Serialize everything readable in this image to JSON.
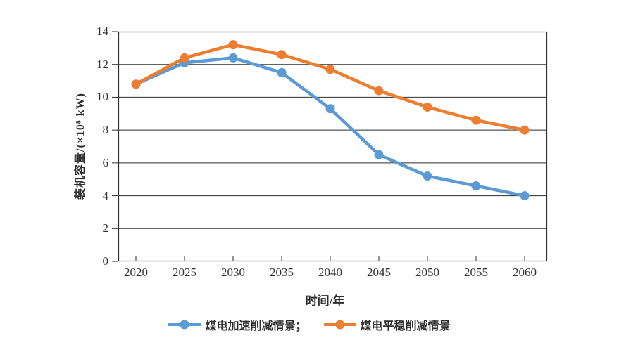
{
  "chart_data": {
    "type": "line",
    "categories": [
      "2020",
      "2025",
      "2030",
      "2035",
      "2040",
      "2045",
      "2050",
      "2055",
      "2060"
    ],
    "series": [
      {
        "name": "煤电加速削减情景；",
        "color": "#5B9BD5",
        "marker": "circle",
        "values": [
          10.8,
          12.1,
          12.4,
          11.5,
          9.3,
          6.5,
          5.2,
          4.6,
          4.0
        ]
      },
      {
        "name": "煤电平稳削减情景",
        "color": "#ED7D31",
        "marker": "circle",
        "values": [
          10.8,
          12.4,
          13.2,
          12.6,
          11.7,
          10.4,
          9.4,
          8.6,
          8.0
        ]
      }
    ],
    "xlabel": "时间/年",
    "ylabel": "装机容量/(×10⁸ kW)",
    "ylim": [
      0,
      14
    ],
    "y_ticks": [
      0,
      2,
      4,
      6,
      8,
      10,
      12,
      14
    ],
    "grid": "horizontal",
    "legend_position": "bottom"
  },
  "colors": {
    "axis": "#2e2e2e",
    "tick_text": "#333333",
    "blue_series": "#5B9BD5",
    "orange_series": "#ED7D31",
    "background": "#ffffff"
  }
}
